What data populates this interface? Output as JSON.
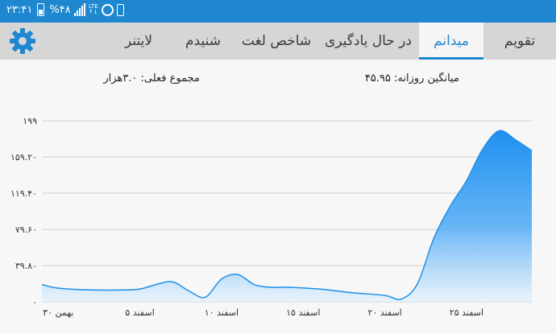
{
  "status_bar": {
    "time": "۲۳:۴۱",
    "battery": "%۴۸",
    "network": "LTE",
    "icons": [
      "battery-icon",
      "signal-icon",
      "lte-icon",
      "alarm-icon",
      "phone-icon"
    ]
  },
  "tabs": [
    {
      "label": "تقویم",
      "active": false
    },
    {
      "label": "میدانم",
      "active": true
    },
    {
      "label": "در حال یادگیری",
      "active": false
    },
    {
      "label": "شاخص لغت",
      "active": false
    },
    {
      "label": "شنیدم",
      "active": false
    },
    {
      "label": "لایتنر",
      "active": false
    }
  ],
  "settings_icon": "gear-icon",
  "stats": {
    "daily_average": "میانگین روزانه: ۴۵.۹۵",
    "total": "مجموع فعلی: ۳.۰هزار"
  },
  "colors": {
    "accent": "#1f87d0",
    "status_bar": "#1f87d0",
    "tab_bar": "#d6d6d6",
    "fill": "#2196f3"
  },
  "chart_data": {
    "type": "area",
    "title": "",
    "xlabel": "",
    "ylabel": "",
    "y_ticks": [
      "۱۹۹",
      "۱۵۹.۲۰",
      "۱۱۹.۴۰",
      "۷۹.۶۰",
      "۳۹.۸۰",
      "۰"
    ],
    "ylim": [
      0,
      199
    ],
    "x_ticks": [
      {
        "day": 0,
        "label": "۳۰ بهمن"
      },
      {
        "day": 5,
        "label": "۵ اسفند"
      },
      {
        "day": 10,
        "label": "۱۰ اسفند"
      },
      {
        "day": 15,
        "label": "۱۵ اسفند"
      },
      {
        "day": 20,
        "label": "۲۰ اسفند"
      },
      {
        "day": 25,
        "label": "۲۵ اسفند"
      }
    ],
    "x": [
      -1,
      0,
      2,
      4,
      5,
      6,
      7,
      8,
      9,
      10,
      11,
      12,
      13,
      14,
      16,
      18,
      20,
      21,
      22,
      23,
      24,
      25,
      26,
      27,
      28,
      29
    ],
    "values": [
      19,
      15,
      13,
      13,
      14,
      19,
      22,
      12,
      5,
      25,
      30,
      19,
      16,
      16,
      14,
      10,
      7,
      3,
      20,
      70,
      105,
      133,
      168,
      188,
      178,
      166
    ],
    "grid": true,
    "legend": "none"
  }
}
